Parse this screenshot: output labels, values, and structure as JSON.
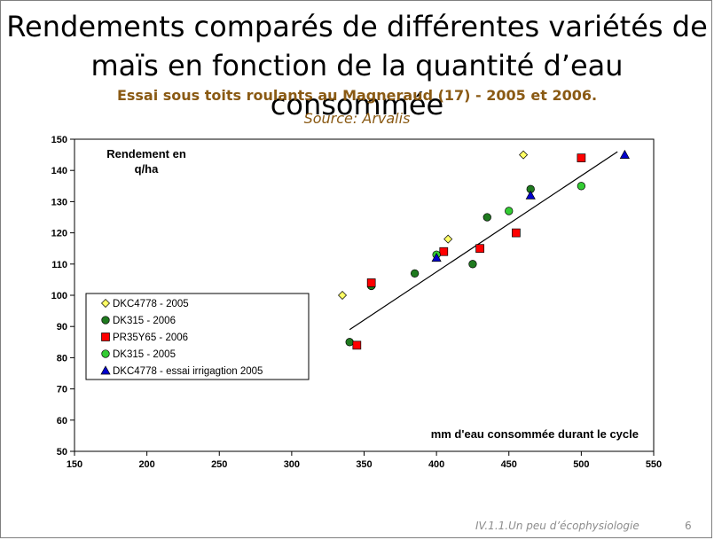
{
  "slide": {
    "title": "Rendements comparés de différentes variétés de\nmaïs en fonction de la quantité d’eau consommée",
    "subtitle": "Essai sous toits roulants au Magneraud (17) - 2005 et 2006.",
    "source": "Source: Arvalis",
    "footer": "IV.1.1.Un peu d’écophysiologie",
    "page_number": "6"
  },
  "chart_data": {
    "type": "scatter",
    "ylabel": "Rendement en q/ha",
    "ylabel_lines": [
      "Rendement en",
      "q/ha"
    ],
    "xlabel": "mm d'eau consommée durant le cycle",
    "xlim": [
      150,
      550
    ],
    "ylim": [
      50,
      150
    ],
    "x_ticks": [
      150,
      200,
      250,
      300,
      350,
      400,
      450,
      500,
      550
    ],
    "y_ticks": [
      50,
      60,
      70,
      80,
      90,
      100,
      110,
      120,
      130,
      140,
      150
    ],
    "grid": false,
    "legend_position": "bottom-left",
    "series": [
      {
        "name": "DKC4778 - 2005",
        "marker": "diamond",
        "color": "#ffff66",
        "points": [
          [
            335,
            100
          ],
          [
            408,
            118
          ],
          [
            460,
            145
          ]
        ]
      },
      {
        "name": "DK315 - 2006",
        "marker": "circle",
        "color": "#1f7a1f",
        "points": [
          [
            340,
            85
          ],
          [
            355,
            103
          ],
          [
            385,
            107
          ],
          [
            425,
            110
          ],
          [
            435,
            125
          ],
          [
            465,
            134
          ]
        ]
      },
      {
        "name": "PR35Y65  - 2006",
        "marker": "square",
        "color": "#ff0000",
        "points": [
          [
            345,
            84
          ],
          [
            355,
            104
          ],
          [
            405,
            114
          ],
          [
            430,
            115
          ],
          [
            455,
            120
          ],
          [
            500,
            144
          ]
        ]
      },
      {
        "name": "DK315 - 2005",
        "marker": "circle",
        "color": "#33cc33",
        "points": [
          [
            400,
            113
          ],
          [
            450,
            127
          ],
          [
            500,
            135
          ]
        ]
      },
      {
        "name": "DKC4778 - essai irrigagtion 2005",
        "marker": "triangle",
        "color": "#0000cc",
        "points": [
          [
            400,
            112
          ],
          [
            465,
            132
          ],
          [
            530,
            145
          ]
        ]
      }
    ],
    "trendline": {
      "x": [
        340,
        525
      ],
      "y": [
        89,
        146
      ]
    }
  }
}
